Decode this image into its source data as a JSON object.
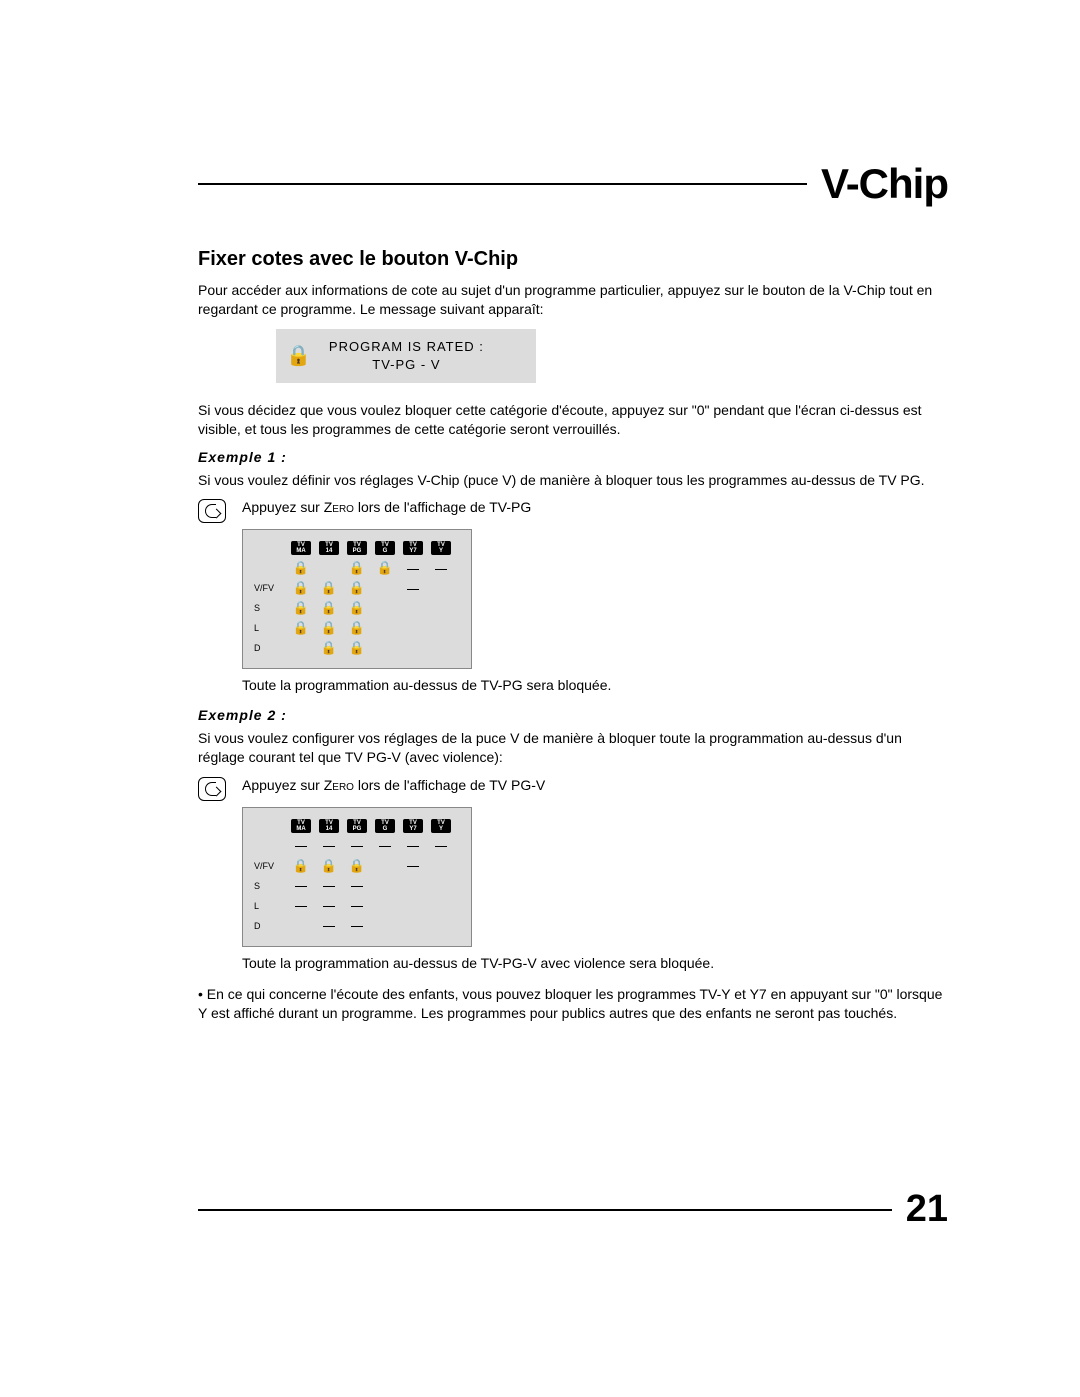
{
  "page": {
    "title": "V-Chip",
    "number": "21"
  },
  "section": {
    "heading": "Fixer cotes avec le bouton V-Chip",
    "intro": "Pour accéder aux informations de cote au sujet d'un programme particulier, appuyez sur le bouton de la V-Chip tout en regardant ce programme. Le message suivant apparaît:",
    "after_box": "Si vous décidez que vous voulez bloquer cette catégorie d'écoute, appuyez sur \"0\" pendant que l'écran ci-dessus est visible, et tous les programmes de cette catégorie seront verrouillés."
  },
  "rated_box": {
    "line1": "PROGRAM IS RATED   :",
    "line2": "TV-PG - V"
  },
  "example1": {
    "label": "Exemple 1 :",
    "lead": "Si vous voulez définir vos réglages V-Chip (puce V) de manière à bloquer tous les programmes au-dessus de TV PG.",
    "step_pre": "Appuyez sur ",
    "step_key": "Zero",
    "step_post": " lors de l'affichage de TV-PG",
    "caption": "Toute la programmation au-dessus de TV-PG sera bloquée."
  },
  "example2": {
    "label": "Exemple 2 :",
    "lead": "Si vous voulez configurer vos réglages de la puce V de manière à bloquer toute la programmation au-dessus d'un réglage courant tel que TV PG-V (avec violence):",
    "step_pre": "Appuyez sur ",
    "step_key": "Zero",
    "step_post": " lors de l'affichage de TV PG-V",
    "caption": "Toute la programmation au-dessus de TV-PG-V avec violence sera bloquée."
  },
  "footer_note": "• En ce qui concerne l'écoute des enfants, vous pouvez bloquer les programmes TV-Y et Y7 en appuyant sur \"0\" lorsque Y est affiché durant un programme. Les programmes pour publics autres que des enfants ne seront pas touchés.",
  "grid": {
    "columns": [
      "MA",
      "14",
      "PG",
      "G",
      "Y7",
      "Y"
    ],
    "row_labels": [
      "",
      "V/FV",
      "S",
      "L",
      "D"
    ],
    "cells_ex1": [
      [
        "lock",
        "",
        "lock",
        "lock",
        "",
        ""
      ],
      [
        "lock",
        "lock",
        "lock",
        "",
        "dash",
        ""
      ],
      [
        "lock",
        "lock",
        "lock",
        "",
        "",
        ""
      ],
      [
        "lock",
        "lock",
        "lock",
        "",
        "",
        ""
      ],
      [
        "",
        "lock",
        "lock",
        "",
        "",
        ""
      ]
    ],
    "top_dashes_ex1": [
      false,
      false,
      false,
      false,
      true,
      true
    ],
    "cells_ex2": [
      [
        "dash",
        "dash",
        "dash",
        "dash",
        "dash",
        "dash"
      ],
      [
        "lock",
        "lock",
        "lock",
        "",
        "dash",
        ""
      ],
      [
        "dash",
        "dash",
        "dash",
        "",
        "",
        ""
      ],
      [
        "dash",
        "dash",
        "dash",
        "",
        "",
        ""
      ],
      [
        "",
        "dash",
        "dash",
        "",
        "",
        ""
      ]
    ]
  },
  "colors": {
    "page_bg": "#ffffff",
    "text": "#000000",
    "box_bg": "#dcdcdc",
    "rule": "#000000"
  }
}
